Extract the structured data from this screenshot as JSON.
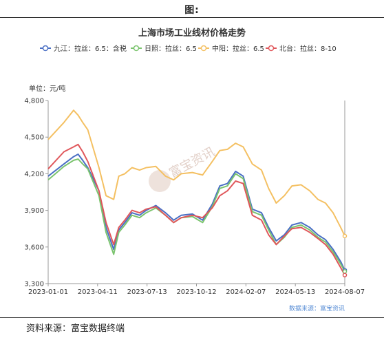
{
  "figure_label": "图:",
  "footer_source": "资料来源：富宝数据终端",
  "colors": {
    "series": [
      "#4a6fc4",
      "#7bc46e",
      "#f4c062",
      "#e0575b"
    ],
    "axis": "#999999",
    "grid": "#e6e6e6",
    "text": "#333333",
    "source_note": "#5b8fd6",
    "watermark": "#e2d0c8"
  },
  "chart_data": {
    "type": "line",
    "title": "上海市场工业线材价格走势",
    "ylabel": "单位：元/吨",
    "xlabel": "",
    "ylim": [
      3300,
      4800
    ],
    "yticks": [
      3300,
      3600,
      3900,
      4200,
      4500,
      4800
    ],
    "ytick_labels": [
      "3,300",
      "3,600",
      "3,900",
      "4,200",
      "4,500",
      "4,800"
    ],
    "xtick_labels": [
      "2023-01-01",
      "2023-04-11",
      "2023-07-13",
      "2023-10-12",
      "2024-02-07",
      "2024-05-13",
      "2024-08-07"
    ],
    "x": [
      "2023-01-01",
      "2023-02-01",
      "2023-02-20",
      "2023-03-01",
      "2023-03-10",
      "2023-03-20",
      "2023-04-11",
      "2023-04-25",
      "2023-05-10",
      "2023-05-20",
      "2023-06-01",
      "2023-06-15",
      "2023-06-30",
      "2023-07-13",
      "2023-08-01",
      "2023-08-20",
      "2023-09-05",
      "2023-09-20",
      "2023-10-12",
      "2023-11-01",
      "2023-11-20",
      "2023-12-05",
      "2023-12-20",
      "2024-01-05",
      "2024-01-20",
      "2024-02-07",
      "2024-02-25",
      "2024-03-10",
      "2024-03-25",
      "2024-04-10",
      "2024-04-25",
      "2024-05-13",
      "2024-05-30",
      "2024-06-15",
      "2024-06-30",
      "2024-07-15",
      "2024-07-30",
      "2024-08-07"
    ],
    "grid": false,
    "legend_position": "top",
    "series": [
      {
        "name": "九江：拉丝：6.5：含税",
        "values": [
          4180,
          4280,
          4340,
          4360,
          4310,
          4250,
          4060,
          3760,
          3580,
          3740,
          3800,
          3880,
          3860,
          3900,
          3940,
          3880,
          3820,
          3860,
          3870,
          3820,
          3950,
          4100,
          4120,
          4220,
          4180,
          3910,
          3880,
          3760,
          3650,
          3700,
          3780,
          3800,
          3760,
          3700,
          3660,
          3580,
          3480,
          3410
        ]
      },
      {
        "name": "日照：拉丝：6.5",
        "values": [
          4150,
          4260,
          4310,
          4320,
          4280,
          4240,
          4020,
          3720,
          3540,
          3720,
          3780,
          3860,
          3840,
          3880,
          3920,
          3860,
          3800,
          3840,
          3850,
          3800,
          3930,
          4080,
          4100,
          4200,
          4160,
          3890,
          3860,
          3740,
          3620,
          3680,
          3760,
          3780,
          3740,
          3680,
          3640,
          3560,
          3460,
          3400
        ]
      },
      {
        "name": "中阳：拉丝：6.5",
        "values": [
          4480,
          4620,
          4720,
          4680,
          4620,
          4560,
          4250,
          4020,
          3990,
          4180,
          4200,
          4250,
          4230,
          4250,
          4260,
          4180,
          4150,
          4200,
          4210,
          4190,
          4300,
          4390,
          4400,
          4450,
          4420,
          4280,
          4230,
          4080,
          3960,
          4020,
          4100,
          4110,
          4060,
          3990,
          3960,
          3880,
          3760,
          3690
        ]
      },
      {
        "name": "北台：拉丝：8-10",
        "values": [
          4240,
          4380,
          4420,
          4440,
          4380,
          4300,
          4060,
          3800,
          3620,
          3760,
          3820,
          3900,
          3880,
          3910,
          3930,
          3860,
          3800,
          3840,
          3860,
          3840,
          3920,
          4020,
          4060,
          4140,
          4120,
          3860,
          3820,
          3700,
          3620,
          3690,
          3750,
          3760,
          3720,
          3670,
          3620,
          3540,
          3430,
          3370
        ]
      }
    ],
    "source_note": "数据来源：富宝资讯",
    "watermark": "富宝资讯"
  }
}
